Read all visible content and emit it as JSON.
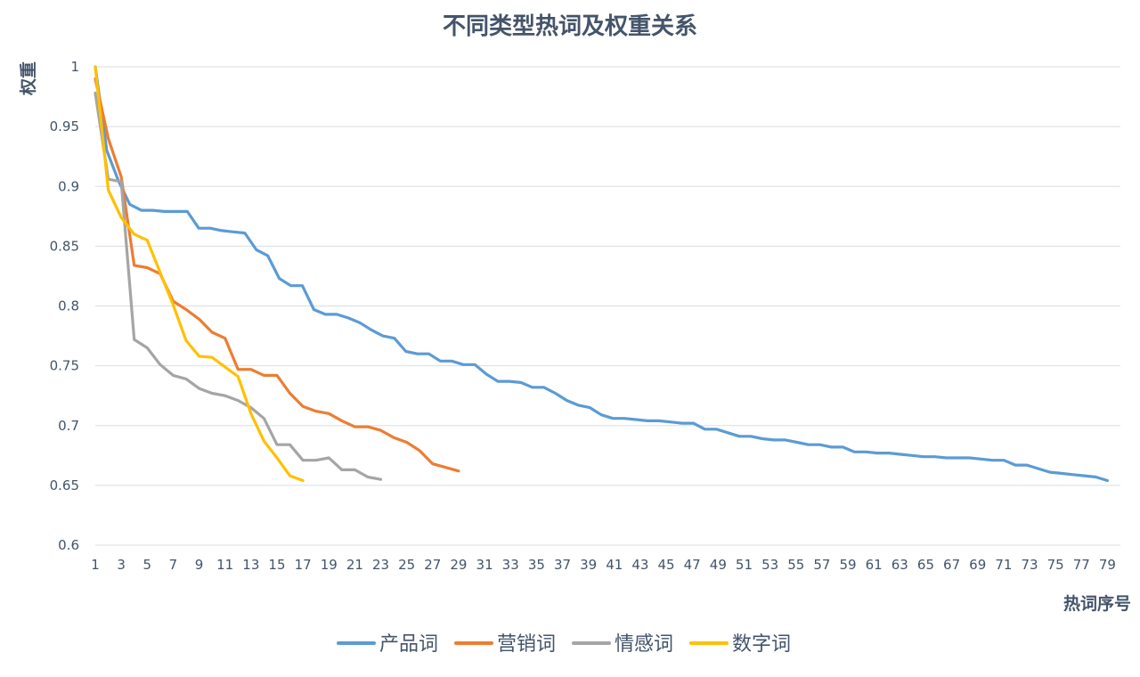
{
  "chart_data": {
    "type": "line",
    "title": "不同类型热词及权重关系",
    "xlabel": "热词序号",
    "ylabel": "权重",
    "xlim": [
      1,
      80
    ],
    "ylim": [
      0.6,
      1
    ],
    "y_ticks": [
      "0.6",
      "0.65",
      "0.7",
      "0.75",
      "0.8",
      "0.85",
      "0.9",
      "0.95",
      "1"
    ],
    "x_ticks": [
      "1",
      "3",
      "5",
      "7",
      "9",
      "11",
      "13",
      "15",
      "17",
      "19",
      "21",
      "23",
      "25",
      "27",
      "29",
      "31",
      "33",
      "35",
      "37",
      "39",
      "41",
      "43",
      "45",
      "47",
      "49",
      "51",
      "53",
      "55",
      "57",
      "59",
      "61",
      "63",
      "65",
      "67",
      "69",
      "71",
      "73",
      "75",
      "77",
      "79"
    ],
    "grid": true,
    "legend_position": "bottom",
    "series": [
      {
        "name": "产品词",
        "color": "#5b9bd5",
        "values": [
          1.0,
          0.93,
          0.905,
          0.885,
          0.88,
          0.88,
          0.879,
          0.879,
          0.879,
          0.865,
          0.865,
          0.863,
          0.862,
          0.861,
          0.847,
          0.842,
          0.823,
          0.817,
          0.817,
          0.797,
          0.793,
          0.793,
          0.79,
          0.786,
          0.78,
          0.775,
          0.773,
          0.762,
          0.76,
          0.76,
          0.754,
          0.754,
          0.751,
          0.751,
          0.743,
          0.737,
          0.737,
          0.736,
          0.732,
          0.732,
          0.727,
          0.721,
          0.717,
          0.715,
          0.709,
          0.706,
          0.706,
          0.705,
          0.704,
          0.704,
          0.703,
          0.702,
          0.702,
          0.697,
          0.697,
          0.694,
          0.691,
          0.691,
          0.689,
          0.688,
          0.688,
          0.686,
          0.684,
          0.684,
          0.682,
          0.682,
          0.678,
          0.678,
          0.677,
          0.677,
          0.676,
          0.675,
          0.674,
          0.674,
          0.673,
          0.673,
          0.673,
          0.672,
          0.671,
          0.671,
          0.667,
          0.667,
          0.664,
          0.661,
          0.66,
          0.659,
          0.658,
          0.657,
          0.654
        ]
      },
      {
        "name": "营销词",
        "color": "#ed7d31",
        "values": [
          0.99,
          0.94,
          0.908,
          0.834,
          0.832,
          0.827,
          0.804,
          0.797,
          0.789,
          0.778,
          0.773,
          0.747,
          0.747,
          0.742,
          0.742,
          0.727,
          0.716,
          0.712,
          0.71,
          0.704,
          0.699,
          0.699,
          0.696,
          0.69,
          0.686,
          0.679,
          0.668,
          0.665,
          0.662
        ]
      },
      {
        "name": "情感词",
        "color": "#a5a5a5",
        "values": [
          0.978,
          0.906,
          0.904,
          0.772,
          0.765,
          0.751,
          0.742,
          0.739,
          0.731,
          0.727,
          0.725,
          0.721,
          0.715,
          0.706,
          0.684,
          0.684,
          0.671,
          0.671,
          0.673,
          0.663,
          0.663,
          0.657,
          0.655
        ]
      },
      {
        "name": "数字词",
        "color": "#ffc000",
        "values": [
          1.0,
          0.897,
          0.874,
          0.86,
          0.855,
          0.828,
          0.801,
          0.771,
          0.758,
          0.757,
          0.749,
          0.741,
          0.71,
          0.687,
          0.673,
          0.658,
          0.654
        ]
      }
    ]
  }
}
